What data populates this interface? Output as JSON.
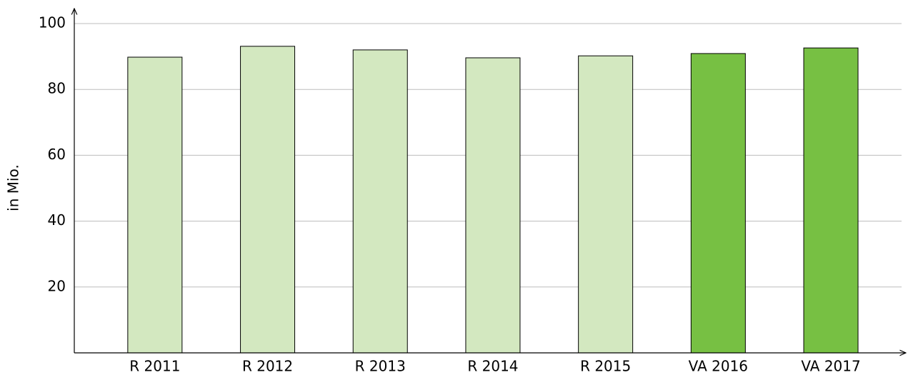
{
  "chart_data": {
    "type": "bar",
    "y_label": "in Mio.",
    "categories": [
      "R 2011",
      "R 2012",
      "R 2013",
      "R 2014",
      "R 2015",
      "VA 2016",
      "VA 2017"
    ],
    "values": [
      89.8,
      93.1,
      92.0,
      89.6,
      90.2,
      90.9,
      92.6
    ],
    "colors": [
      "#d3e8c0",
      "#d3e8c0",
      "#d3e8c0",
      "#d3e8c0",
      "#d3e8c0",
      "#77c043",
      "#77c043"
    ],
    "ylim": [
      0,
      100
    ],
    "yticks": [
      20,
      40,
      60,
      80,
      100
    ],
    "grid": true
  }
}
